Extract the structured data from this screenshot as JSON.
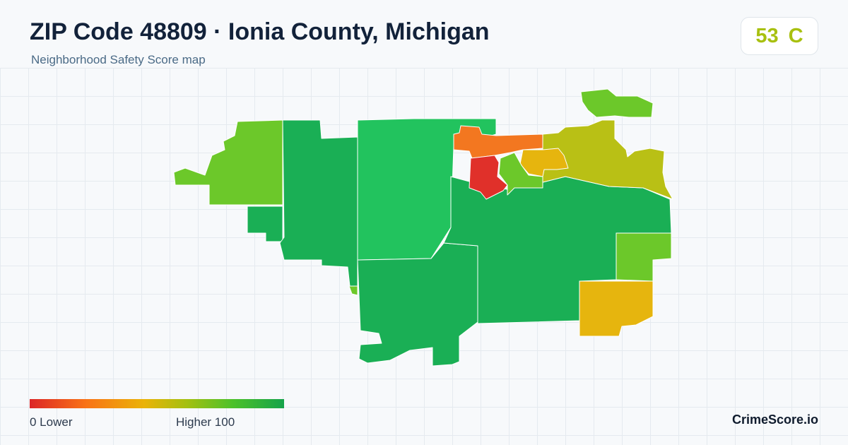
{
  "header": {
    "title": "ZIP Code 48809 · Ionia County, Michigan",
    "subtitle": "Neighborhood Safety Score map"
  },
  "score": {
    "value": "53",
    "grade": "C",
    "color": "#a8c010"
  },
  "legend": {
    "min_label": "0  Lower",
    "max_label": "Higher  100",
    "min_color": "#dc2626",
    "max_color": "#16a34a"
  },
  "brand": "CrimeScore.io",
  "regions_colors": {
    "dark_green": "#1aaf55",
    "bright_green": "#22c35e",
    "lime": "#6cc82a",
    "olive": "#b9c015",
    "amber": "#e6b50e",
    "orange": "#f37720",
    "red": "#e0302a"
  }
}
